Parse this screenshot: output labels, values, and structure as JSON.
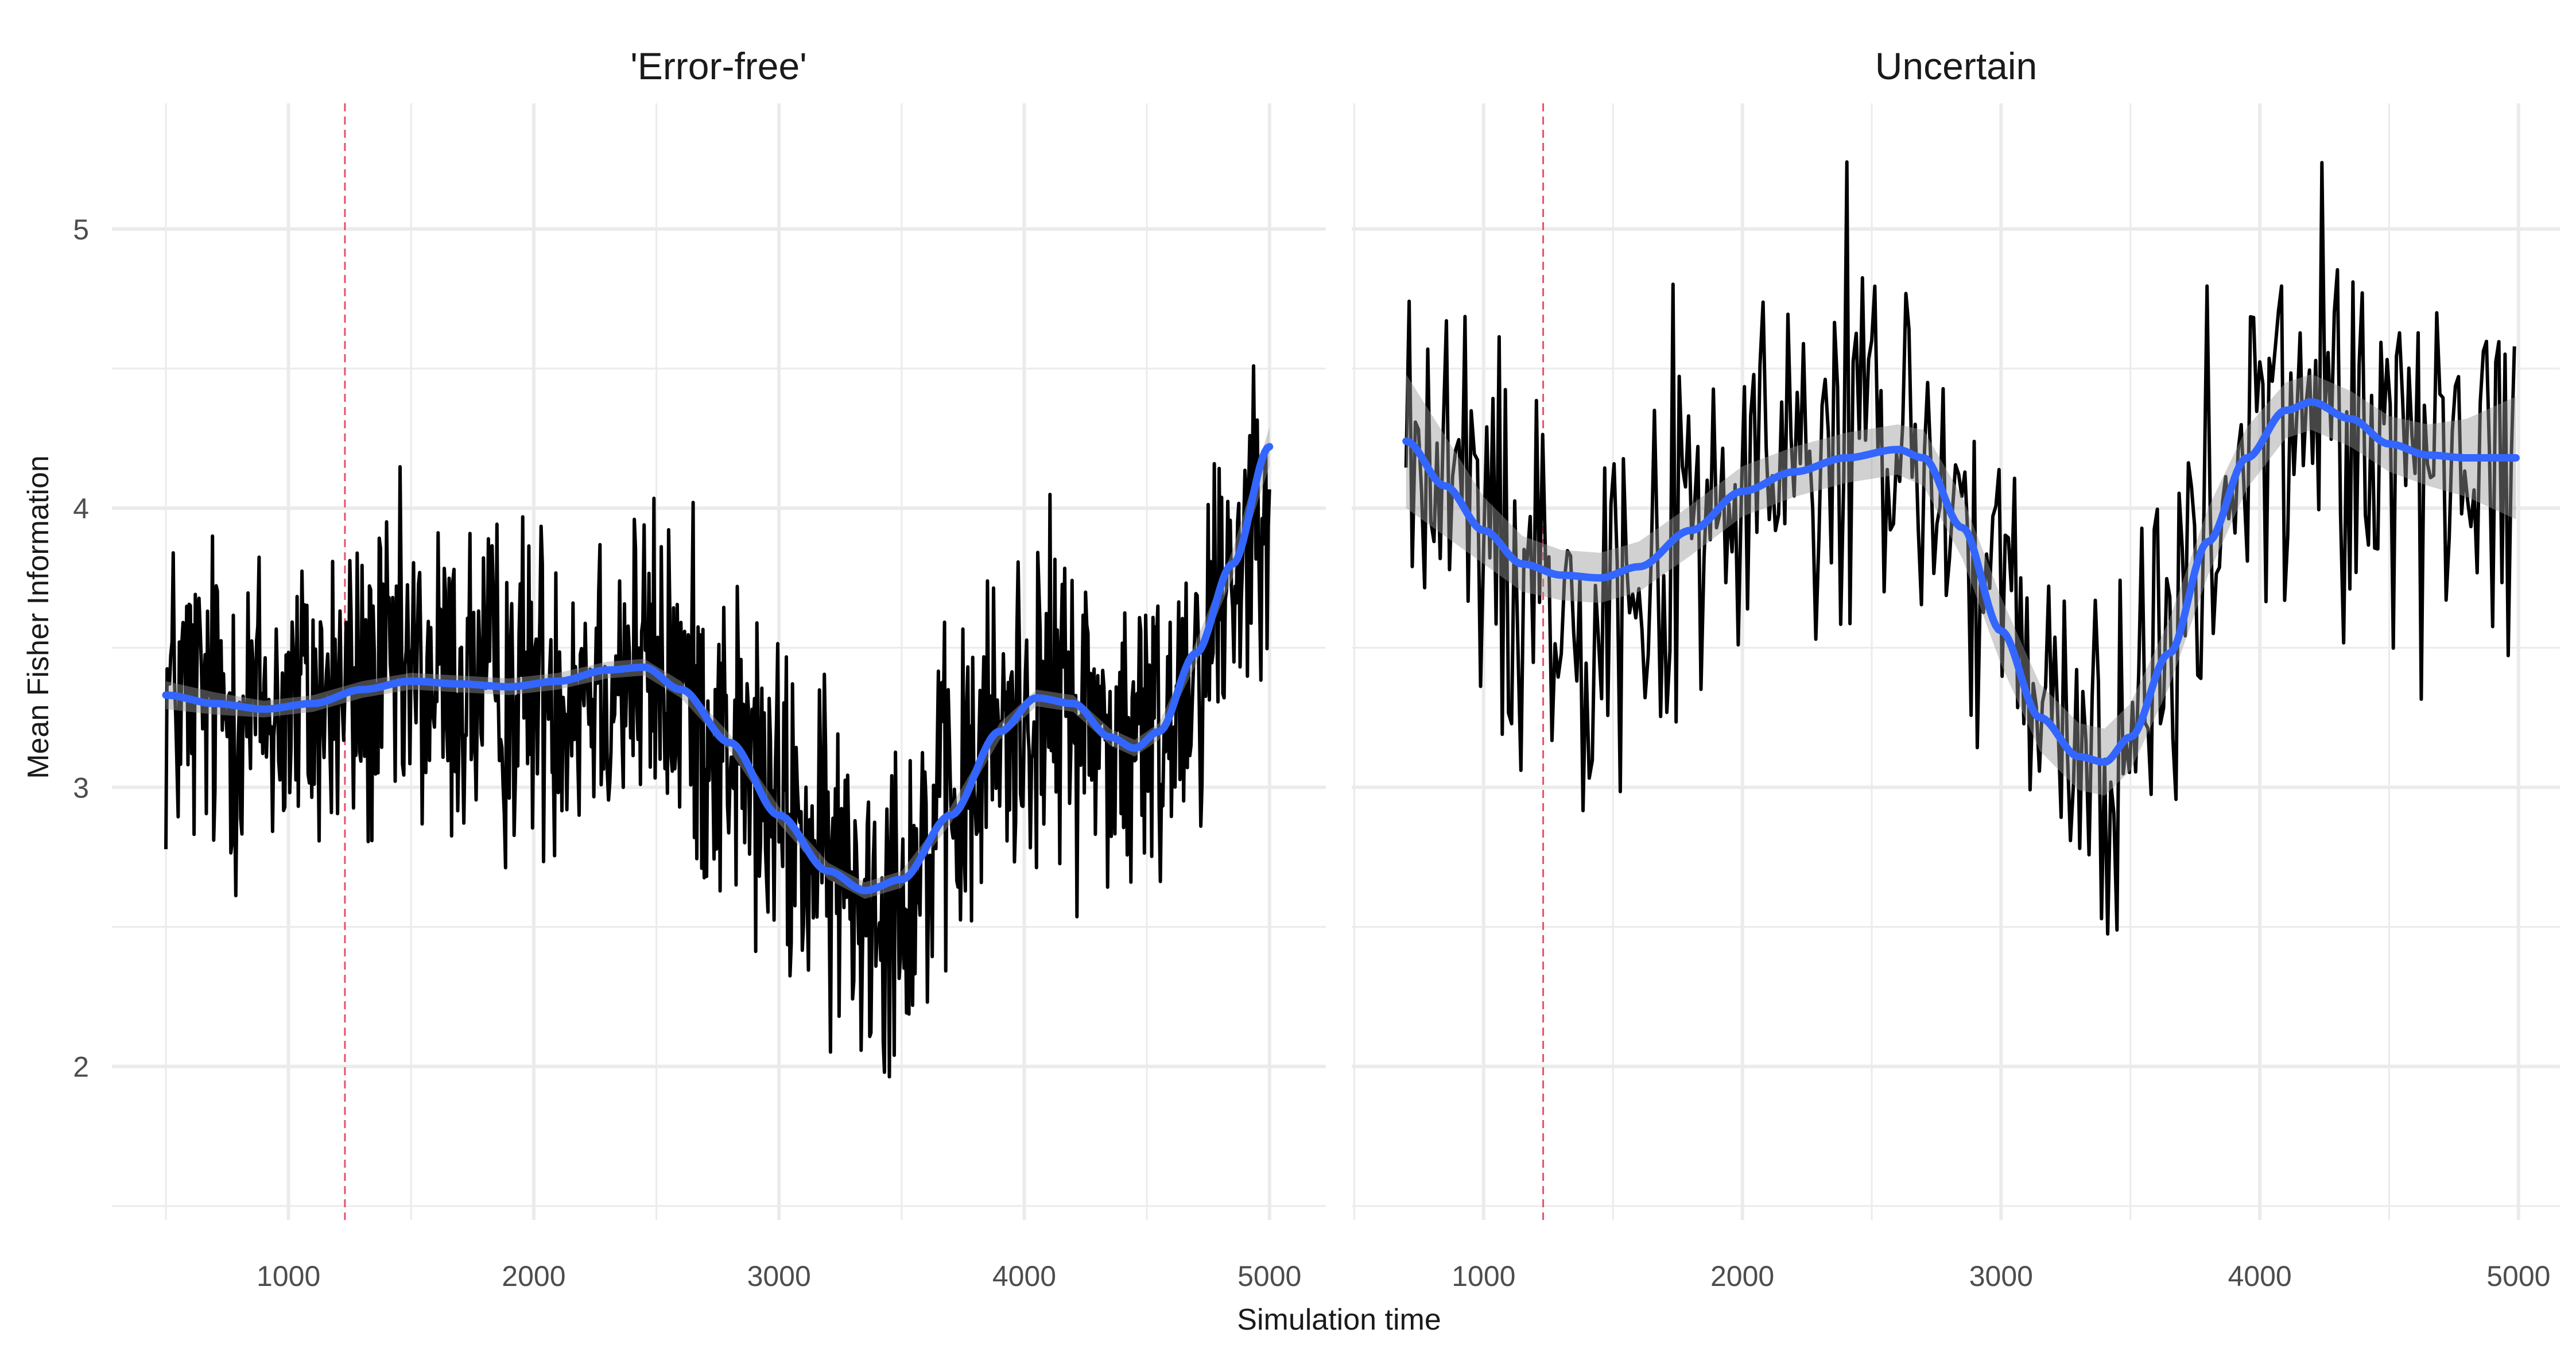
{
  "x_axis_title": "Simulation time",
  "y_axis_title": "Mean Fisher Information",
  "colors": {
    "series": "#000000",
    "smooth": "#3366FF",
    "ribbon": "#999999",
    "vline": "#E8506E",
    "grid": "#EBEBEB"
  },
  "chart_data": [
    {
      "type": "line",
      "title": "'Error-free'",
      "xlabel": "Simulation time",
      "ylabel": "Mean Fisher Information",
      "xlim": [
        280,
        5230
      ],
      "ylim": [
        1.45,
        5.45
      ],
      "xticks": [
        1000,
        2000,
        3000,
        4000,
        5000
      ],
      "yticks": [
        2,
        3,
        4,
        5
      ],
      "grid": true,
      "vline_x": 1230,
      "series_x_range": [
        500,
        5000
      ],
      "series_step": 5,
      "smooth": {
        "x": [
          500,
          700,
          900,
          1100,
          1300,
          1500,
          1700,
          1900,
          2100,
          2300,
          2450,
          2600,
          2800,
          3000,
          3200,
          3350,
          3500,
          3700,
          3900,
          4050,
          4200,
          4350,
          4450,
          4550,
          4700,
          4850,
          5000
        ],
        "y": [
          3.33,
          3.3,
          3.28,
          3.3,
          3.35,
          3.38,
          3.37,
          3.36,
          3.38,
          3.42,
          3.43,
          3.35,
          3.16,
          2.9,
          2.7,
          2.63,
          2.67,
          2.9,
          3.2,
          3.32,
          3.3,
          3.18,
          3.14,
          3.2,
          3.48,
          3.8,
          4.22
        ]
      },
      "ribbon_halfwidth": [
        0.05,
        0.04,
        0.03,
        0.03,
        0.03,
        0.03,
        0.03,
        0.03,
        0.03,
        0.03,
        0.03,
        0.03,
        0.03,
        0.03,
        0.03,
        0.03,
        0.03,
        0.03,
        0.03,
        0.03,
        0.03,
        0.03,
        0.03,
        0.03,
        0.04,
        0.05,
        0.07
      ]
    },
    {
      "type": "line",
      "title": "Uncertain",
      "xlabel": "Simulation time",
      "ylabel": "Mean Fisher Information",
      "xlim": [
        490,
        5160
      ],
      "ylim": [
        1.45,
        5.45
      ],
      "xticks": [
        1000,
        2000,
        3000,
        4000,
        5000
      ],
      "yticks": [
        2,
        3,
        4,
        5
      ],
      "grid": true,
      "vline_x": 1230,
      "series_x_range": [
        700,
        4990
      ],
      "series_step": 12,
      "spike": {
        "x": 2400,
        "y": 5.24
      },
      "smooth": {
        "x": [
          700,
          850,
          1000,
          1150,
          1300,
          1450,
          1600,
          1800,
          2000,
          2200,
          2400,
          2600,
          2700,
          2850,
          3000,
          3150,
          3300,
          3400,
          3500,
          3650,
          3800,
          3950,
          4100,
          4200,
          4350,
          4500,
          4650,
          4800,
          4990
        ],
        "y": [
          4.24,
          4.08,
          3.92,
          3.8,
          3.76,
          3.75,
          3.79,
          3.92,
          4.06,
          4.13,
          4.18,
          4.21,
          4.18,
          3.93,
          3.56,
          3.25,
          3.11,
          3.09,
          3.18,
          3.48,
          3.88,
          4.18,
          4.35,
          4.38,
          4.32,
          4.23,
          4.19,
          4.18,
          4.18
        ]
      },
      "ribbon_halfwidth": [
        0.24,
        0.18,
        0.12,
        0.1,
        0.09,
        0.09,
        0.09,
        0.09,
        0.09,
        0.09,
        0.09,
        0.09,
        0.1,
        0.11,
        0.12,
        0.12,
        0.12,
        0.12,
        0.12,
        0.12,
        0.12,
        0.11,
        0.1,
        0.1,
        0.1,
        0.1,
        0.11,
        0.14,
        0.22
      ]
    }
  ]
}
